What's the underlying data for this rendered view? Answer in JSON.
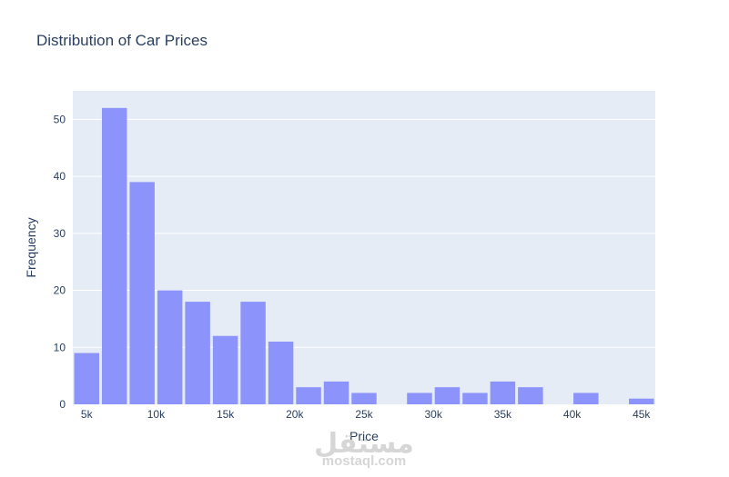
{
  "chart_data": {
    "type": "bar",
    "title": "Distribution of Car Prices",
    "xlabel": "Price",
    "ylabel": "Frequency",
    "bin_width": 2000,
    "bins": [
      {
        "start": 4000,
        "end": 6000,
        "count": 9
      },
      {
        "start": 6000,
        "end": 8000,
        "count": 52
      },
      {
        "start": 8000,
        "end": 10000,
        "count": 39
      },
      {
        "start": 10000,
        "end": 12000,
        "count": 20
      },
      {
        "start": 12000,
        "end": 14000,
        "count": 18
      },
      {
        "start": 14000,
        "end": 16000,
        "count": 12
      },
      {
        "start": 16000,
        "end": 18000,
        "count": 18
      },
      {
        "start": 18000,
        "end": 20000,
        "count": 11
      },
      {
        "start": 20000,
        "end": 22000,
        "count": 3
      },
      {
        "start": 22000,
        "end": 24000,
        "count": 4
      },
      {
        "start": 24000,
        "end": 26000,
        "count": 2
      },
      {
        "start": 26000,
        "end": 28000,
        "count": 0
      },
      {
        "start": 28000,
        "end": 30000,
        "count": 2
      },
      {
        "start": 30000,
        "end": 32000,
        "count": 3
      },
      {
        "start": 32000,
        "end": 34000,
        "count": 2
      },
      {
        "start": 34000,
        "end": 36000,
        "count": 4
      },
      {
        "start": 36000,
        "end": 38000,
        "count": 3
      },
      {
        "start": 38000,
        "end": 40000,
        "count": 0
      },
      {
        "start": 40000,
        "end": 42000,
        "count": 2
      },
      {
        "start": 42000,
        "end": 44000,
        "count": 0
      },
      {
        "start": 44000,
        "end": 46000,
        "count": 1
      }
    ],
    "xlim": [
      4000,
      46000
    ],
    "ylim": [
      0,
      55
    ],
    "x_ticks": [
      {
        "value": 5000,
        "label": "5k"
      },
      {
        "value": 10000,
        "label": "10k"
      },
      {
        "value": 15000,
        "label": "15k"
      },
      {
        "value": 20000,
        "label": "20k"
      },
      {
        "value": 25000,
        "label": "25k"
      },
      {
        "value": 30000,
        "label": "30k"
      },
      {
        "value": 35000,
        "label": "35k"
      },
      {
        "value": 40000,
        "label": "40k"
      },
      {
        "value": 45000,
        "label": "45k"
      }
    ],
    "y_ticks": [
      {
        "value": 0,
        "label": "0"
      },
      {
        "value": 10,
        "label": "10"
      },
      {
        "value": 20,
        "label": "20"
      },
      {
        "value": 30,
        "label": "30"
      },
      {
        "value": 40,
        "label": "40"
      },
      {
        "value": 50,
        "label": "50"
      }
    ],
    "grid": true,
    "colors": {
      "bar": "#8c93fa",
      "plot_bg": "#e5ecf6",
      "grid": "#ffffff",
      "text": "#2a3f5f"
    }
  },
  "watermark": {
    "main": "مستقل",
    "sub": "mostaql.com"
  }
}
